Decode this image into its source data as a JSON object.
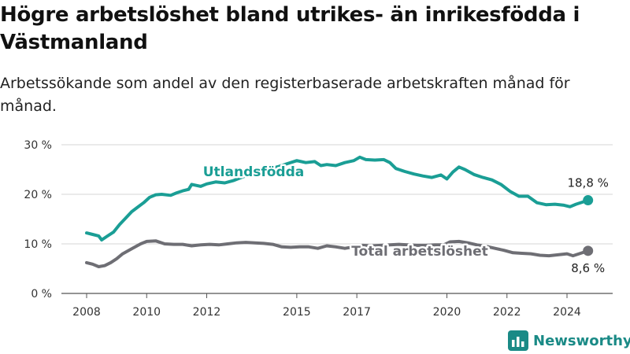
{
  "title": "Högre arbetslöshet bland utrikes- än inrikesfödda i Västmanland",
  "subtitle": "Arbetssökande som andel av den registerbaserade arbetskraften månad för månad.",
  "brand": {
    "name": "Newsworthy",
    "icon": "bar-chart-logo-icon"
  },
  "chart_data": {
    "type": "line",
    "title": "Högre arbetslöshet bland utrikes- än inrikesfödda i Västmanland",
    "subtitle": "Arbetssökande som andel av den registerbaserade arbetskraften månad för månad.",
    "xlabel": "",
    "ylabel": "",
    "xlim": [
      2008,
      2025.1
    ],
    "ylim": [
      0,
      30
    ],
    "grid": true,
    "legend": "none",
    "x_ticks": [
      2008,
      2010,
      2012,
      2015,
      2017,
      2020,
      2022,
      2024
    ],
    "y_ticks": [
      {
        "value": 0,
        "label": "0 %"
      },
      {
        "value": 10,
        "label": "10 %"
      },
      {
        "value": 20,
        "label": "20 %"
      },
      {
        "value": 30,
        "label": "30 %"
      }
    ],
    "series": [
      {
        "name": "Utlandsfödda",
        "color": "#1a9e95",
        "end_label": "18,8 %",
        "points": [
          [
            2008.0,
            12.2
          ],
          [
            2008.2,
            11.9
          ],
          [
            2008.4,
            11.6
          ],
          [
            2008.5,
            10.8
          ],
          [
            2008.7,
            11.6
          ],
          [
            2008.9,
            12.4
          ],
          [
            2009.1,
            13.9
          ],
          [
            2009.3,
            15.2
          ],
          [
            2009.5,
            16.5
          ],
          [
            2009.7,
            17.4
          ],
          [
            2009.9,
            18.3
          ],
          [
            2010.1,
            19.4
          ],
          [
            2010.3,
            19.9
          ],
          [
            2010.5,
            20.0
          ],
          [
            2010.8,
            19.8
          ],
          [
            2011.0,
            20.3
          ],
          [
            2011.2,
            20.7
          ],
          [
            2011.4,
            21.0
          ],
          [
            2011.5,
            22.0
          ],
          [
            2011.8,
            21.6
          ],
          [
            2012.0,
            22.1
          ],
          [
            2012.3,
            22.5
          ],
          [
            2012.6,
            22.3
          ],
          [
            2012.9,
            22.8
          ],
          [
            2013.2,
            23.5
          ],
          [
            2013.6,
            24.3
          ],
          [
            2014.0,
            25.0
          ],
          [
            2014.4,
            25.6
          ],
          [
            2014.7,
            26.2
          ],
          [
            2015.0,
            26.8
          ],
          [
            2015.3,
            26.4
          ],
          [
            2015.6,
            26.6
          ],
          [
            2015.8,
            25.8
          ],
          [
            2016.0,
            26.0
          ],
          [
            2016.3,
            25.8
          ],
          [
            2016.6,
            26.4
          ],
          [
            2016.9,
            26.8
          ],
          [
            2017.1,
            27.5
          ],
          [
            2017.3,
            27.0
          ],
          [
            2017.6,
            26.9
          ],
          [
            2017.9,
            27.0
          ],
          [
            2018.1,
            26.4
          ],
          [
            2018.3,
            25.2
          ],
          [
            2018.6,
            24.6
          ],
          [
            2018.9,
            24.1
          ],
          [
            2019.2,
            23.7
          ],
          [
            2019.5,
            23.4
          ],
          [
            2019.8,
            23.9
          ],
          [
            2020.0,
            23.1
          ],
          [
            2020.2,
            24.5
          ],
          [
            2020.4,
            25.5
          ],
          [
            2020.6,
            25.0
          ],
          [
            2020.9,
            24.0
          ],
          [
            2021.2,
            23.4
          ],
          [
            2021.5,
            22.9
          ],
          [
            2021.8,
            22.0
          ],
          [
            2022.1,
            20.6
          ],
          [
            2022.4,
            19.6
          ],
          [
            2022.7,
            19.6
          ],
          [
            2023.0,
            18.3
          ],
          [
            2023.3,
            17.9
          ],
          [
            2023.6,
            18.0
          ],
          [
            2023.9,
            17.8
          ],
          [
            2024.1,
            17.5
          ],
          [
            2024.3,
            18.0
          ],
          [
            2024.5,
            18.4
          ],
          [
            2024.7,
            18.8
          ]
        ]
      },
      {
        "name": "Total arbetslöshet",
        "color": "#6e6e74",
        "end_label": "8,6 %",
        "points": [
          [
            2008.0,
            6.2
          ],
          [
            2008.2,
            5.9
          ],
          [
            2008.4,
            5.4
          ],
          [
            2008.6,
            5.6
          ],
          [
            2008.8,
            6.2
          ],
          [
            2009.0,
            7.0
          ],
          [
            2009.2,
            8.0
          ],
          [
            2009.5,
            9.0
          ],
          [
            2009.8,
            10.0
          ],
          [
            2010.0,
            10.5
          ],
          [
            2010.3,
            10.6
          ],
          [
            2010.6,
            10.0
          ],
          [
            2010.9,
            9.9
          ],
          [
            2011.2,
            9.9
          ],
          [
            2011.5,
            9.6
          ],
          [
            2011.8,
            9.8
          ],
          [
            2012.1,
            9.9
          ],
          [
            2012.4,
            9.8
          ],
          [
            2012.7,
            10.0
          ],
          [
            2013.0,
            10.2
          ],
          [
            2013.3,
            10.3
          ],
          [
            2013.6,
            10.2
          ],
          [
            2013.9,
            10.1
          ],
          [
            2014.2,
            9.9
          ],
          [
            2014.5,
            9.4
          ],
          [
            2014.8,
            9.3
          ],
          [
            2015.1,
            9.4
          ],
          [
            2015.4,
            9.4
          ],
          [
            2015.7,
            9.1
          ],
          [
            2016.0,
            9.6
          ],
          [
            2016.3,
            9.4
          ],
          [
            2016.6,
            9.1
          ],
          [
            2016.9,
            9.4
          ],
          [
            2017.2,
            9.7
          ],
          [
            2017.5,
            9.6
          ],
          [
            2017.8,
            9.7
          ],
          [
            2018.1,
            9.8
          ],
          [
            2018.4,
            9.9
          ],
          [
            2018.7,
            9.8
          ],
          [
            2019.0,
            9.7
          ],
          [
            2019.3,
            9.7
          ],
          [
            2019.6,
            9.8
          ],
          [
            2019.9,
            9.8
          ],
          [
            2020.1,
            10.4
          ],
          [
            2020.4,
            10.5
          ],
          [
            2020.7,
            10.2
          ],
          [
            2021.0,
            9.8
          ],
          [
            2021.3,
            9.5
          ],
          [
            2021.6,
            9.1
          ],
          [
            2021.9,
            8.7
          ],
          [
            2022.2,
            8.2
          ],
          [
            2022.5,
            8.1
          ],
          [
            2022.8,
            8.0
          ],
          [
            2023.1,
            7.7
          ],
          [
            2023.4,
            7.6
          ],
          [
            2023.7,
            7.8
          ],
          [
            2024.0,
            8.0
          ],
          [
            2024.2,
            7.6
          ],
          [
            2024.4,
            8.0
          ],
          [
            2024.6,
            8.4
          ],
          [
            2024.7,
            8.6
          ]
        ]
      }
    ]
  }
}
